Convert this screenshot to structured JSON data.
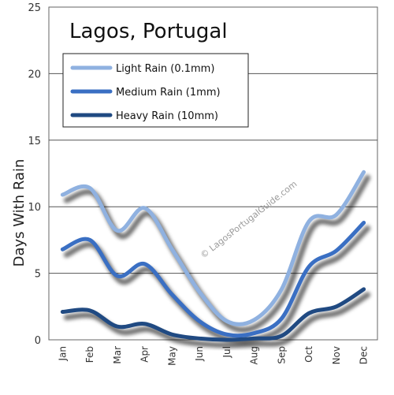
{
  "chart_data": {
    "type": "line",
    "title": "Lagos, Portugal",
    "ylabel": "Days With Rain",
    "xlabel": "",
    "categories": [
      "Jan",
      "Feb",
      "Mar",
      "Apr",
      "May",
      "Jun",
      "Jul",
      "Aug",
      "Sep",
      "Oct",
      "Nov",
      "Dec"
    ],
    "yticks": [
      "0",
      "5",
      "10",
      "15",
      "20",
      "25"
    ],
    "ylim": [
      0,
      25
    ],
    "grid": true,
    "legend_position": "top-left",
    "series": [
      {
        "name": "Light Rain (0.1mm)",
        "color": "#8fb1e0",
        "values": [
          10.9,
          11.4,
          8.2,
          9.9,
          6.8,
          3.6,
          1.4,
          1.5,
          3.8,
          8.9,
          9.4,
          12.6
        ]
      },
      {
        "name": "Medium Rain (1mm)",
        "color": "#3a6fc3",
        "values": [
          6.8,
          7.5,
          4.8,
          5.7,
          3.4,
          1.4,
          0.4,
          0.5,
          1.6,
          5.5,
          6.7,
          8.8
        ]
      },
      {
        "name": "Heavy Rain (10mm)",
        "color": "#204a82",
        "values": [
          2.1,
          2.2,
          1.0,
          1.2,
          0.4,
          0.1,
          0.0,
          0.1,
          0.3,
          2.0,
          2.5,
          3.8
        ]
      }
    ],
    "watermark": "© LagosPortugalGuide.com"
  }
}
